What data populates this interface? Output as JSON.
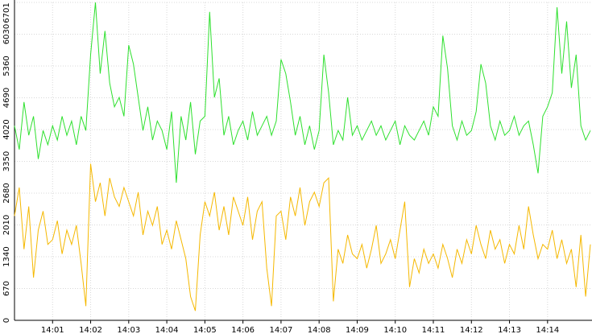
{
  "chart_data": {
    "type": "line",
    "categories": [
      null,
      null,
      null,
      null,
      null,
      null,
      null,
      null,
      "14:01",
      null,
      null,
      null,
      null,
      null,
      null,
      null,
      "14:02",
      null,
      null,
      null,
      null,
      null,
      null,
      null,
      "14:03",
      null,
      null,
      null,
      null,
      null,
      null,
      null,
      "14:04",
      null,
      null,
      null,
      null,
      null,
      null,
      null,
      "14:05",
      null,
      null,
      null,
      null,
      null,
      null,
      null,
      "14:06",
      null,
      null,
      null,
      null,
      null,
      null,
      null,
      "14:07",
      null,
      null,
      null,
      null,
      null,
      null,
      null,
      "14:08",
      null,
      null,
      null,
      null,
      null,
      null,
      null,
      "14:09",
      null,
      null,
      null,
      null,
      null,
      null,
      null,
      "14:10",
      null,
      null,
      null,
      null,
      null,
      null,
      null,
      "14:11",
      null,
      null,
      null,
      null,
      null,
      null,
      null,
      "14:12",
      null,
      null,
      null,
      null,
      null,
      null,
      null,
      "14:13",
      null,
      null,
      null,
      null,
      null,
      null,
      null,
      "14:14",
      null,
      null,
      null,
      null,
      null,
      null,
      null,
      null,
      null
    ],
    "series": [
      {
        "color": "#2ee02e",
        "values": [
          4100,
          3600,
          4600,
          3900,
          4300,
          3400,
          4000,
          3700,
          4100,
          3800,
          4300,
          3900,
          4200,
          3700,
          4300,
          4000,
          5600,
          6700,
          5200,
          6100,
          5000,
          4500,
          4700,
          4300,
          5800,
          5400,
          4700,
          4000,
          4500,
          3800,
          4200,
          4000,
          3600,
          4400,
          2900,
          4300,
          3800,
          4600,
          3500,
          4200,
          4300,
          6500,
          4700,
          5100,
          3900,
          4300,
          3700,
          4000,
          4200,
          3800,
          4400,
          3900,
          4100,
          4300,
          3900,
          4200,
          5500,
          5200,
          4600,
          3900,
          4300,
          3700,
          4100,
          3600,
          4000,
          5600,
          4800,
          3700,
          4000,
          3800,
          4700,
          3900,
          4100,
          3800,
          4000,
          4200,
          3900,
          4100,
          3800,
          4000,
          4200,
          3700,
          4100,
          3900,
          3800,
          4000,
          4200,
          3900,
          4500,
          4300,
          6000,
          5300,
          4100,
          3800,
          4200,
          3900,
          4000,
          4400,
          5400,
          5000,
          4100,
          3800,
          4200,
          3900,
          4000,
          4300,
          3900,
          4100,
          4200,
          3700,
          3100,
          4300,
          4500,
          4800,
          6600,
          5200,
          6300,
          4900,
          5600,
          4100,
          3800,
          4000
        ]
      },
      {
        "color": "#f5b800",
        "values": [
          2200,
          2800,
          1500,
          2400,
          900,
          1900,
          2300,
          1600,
          1700,
          2100,
          1400,
          1900,
          1600,
          2000,
          1200,
          300,
          3300,
          2500,
          2900,
          2200,
          3000,
          2600,
          2400,
          2800,
          2500,
          2200,
          2700,
          1800,
          2300,
          2000,
          2400,
          1600,
          1900,
          1500,
          2100,
          1700,
          1300,
          500,
          200,
          1800,
          2500,
          2200,
          2700,
          1900,
          2400,
          1800,
          2600,
          2300,
          2000,
          2600,
          1700,
          2300,
          2500,
          1100,
          300,
          2200,
          2300,
          1700,
          2600,
          2200,
          2800,
          2000,
          2500,
          2700,
          2400,
          2900,
          3000,
          400,
          1500,
          1200,
          1800,
          1400,
          1300,
          1600,
          1100,
          1500,
          2000,
          1200,
          1400,
          1700,
          1300,
          1900,
          2500,
          700,
          1300,
          1000,
          1500,
          1200,
          1400,
          1100,
          1600,
          1300,
          900,
          1500,
          1200,
          1700,
          1400,
          2000,
          1600,
          1300,
          1900,
          1500,
          1700,
          1200,
          1600,
          1400,
          2000,
          1500,
          2400,
          1800,
          1300,
          1600,
          1500,
          1900,
          1300,
          1700,
          1200,
          1500,
          700,
          1800,
          500,
          1600
        ]
      }
    ],
    "ylim": [
      0,
      6701
    ],
    "yticks": [
      0,
      670,
      1340,
      2010,
      2680,
      3350,
      4020,
      4690,
      5360,
      6030,
      6701
    ],
    "grid": true
  }
}
